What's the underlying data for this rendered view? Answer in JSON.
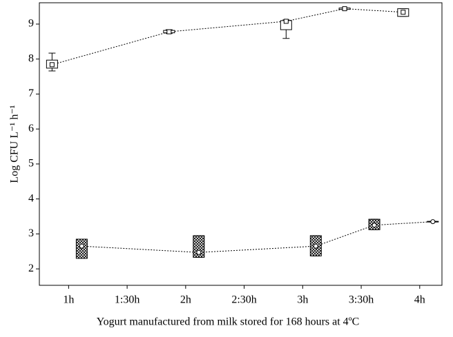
{
  "chart_data": {
    "type": "box",
    "x_label": "Yogurt manufactured from milk stored for 168 hours at 4ºC",
    "y_label": "Log CFU L⁻¹ h⁻¹",
    "xlim": [
      0.75,
      4.19
    ],
    "xticks": [
      {
        "value": 1,
        "label": "1h"
      },
      {
        "value": 1.5,
        "label": "1:30h"
      },
      {
        "value": 2,
        "label": "2h"
      },
      {
        "value": 2.5,
        "label": "2:30h"
      },
      {
        "value": 3,
        "label": "3h"
      },
      {
        "value": 3.5,
        "label": "3:30h"
      },
      {
        "value": 4,
        "label": "4h"
      }
    ],
    "ylim": [
      1.53,
      9.61
    ],
    "yticks": [
      2,
      3,
      4,
      5,
      6,
      7,
      8,
      9
    ],
    "series": [
      {
        "marker": "square",
        "box_fill": "white",
        "color": "#000000",
        "x": [
          1,
          2,
          3,
          3.5,
          4
        ],
        "values": [
          7.84,
          8.78,
          9.08,
          9.44,
          9.34
        ],
        "box_low": [
          7.74,
          8.75,
          8.84,
          9.42,
          9.22
        ],
        "box_high": [
          7.97,
          8.82,
          9.1,
          9.46,
          9.44
        ],
        "whisker_low": [
          7.66,
          8.73,
          8.59,
          9.42,
          9.22
        ],
        "whisker_high": [
          8.17,
          8.84,
          9.12,
          9.46,
          9.44
        ]
      },
      {
        "marker": "circle",
        "box_fill": "hatch",
        "color": "#000000",
        "x": [
          1,
          2,
          3,
          3.5,
          4
        ],
        "values": [
          2.65,
          2.47,
          2.65,
          3.25,
          3.35
        ],
        "box_low": [
          2.3,
          2.33,
          2.37,
          3.12,
          3.34
        ],
        "box_high": [
          2.85,
          2.95,
          2.95,
          3.42,
          3.36
        ],
        "whisker_low": [
          2.3,
          2.33,
          2.37,
          3.12,
          3.34
        ],
        "whisker_high": [
          2.85,
          2.95,
          2.95,
          3.42,
          3.36
        ]
      }
    ]
  }
}
